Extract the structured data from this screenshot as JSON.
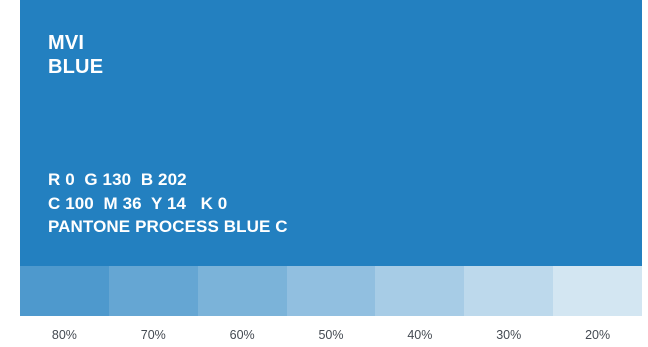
{
  "brand_color": "#2380c0",
  "swatch": {
    "name_lines": [
      "MVI",
      "BLUE"
    ],
    "specs": [
      "R 0  G 130  B 202",
      "C 100  M 36  Y 14   K 0",
      "PANTONE PROCESS BLUE C"
    ]
  },
  "tints": [
    {
      "label": "80%",
      "color": "#4e99cd"
    },
    {
      "label": "70%",
      "color": "#65a6d3"
    },
    {
      "label": "60%",
      "color": "#7bb3d9"
    },
    {
      "label": "50%",
      "color": "#91bfe0"
    },
    {
      "label": "40%",
      "color": "#a7cce6"
    },
    {
      "label": "30%",
      "color": "#bdd9ec"
    },
    {
      "label": "20%",
      "color": "#d3e6f2"
    }
  ]
}
